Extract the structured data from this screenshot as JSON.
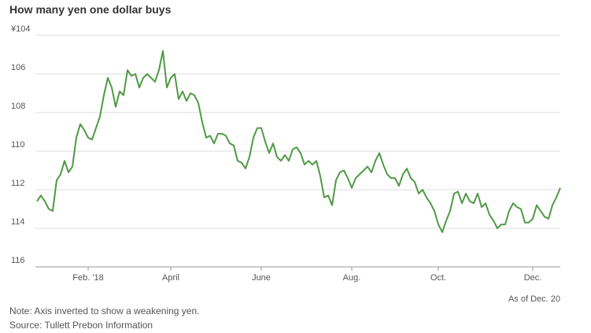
{
  "chart_data": {
    "type": "line",
    "title": "How many yen one dollar buys",
    "note": "Note: Axis inverted to show a weakening yen.",
    "source": "Source: Tullett Prebon Information",
    "annotation": "As of Dec. 20",
    "color": "#4f9a45",
    "inverted": true,
    "grid": true,
    "ylim": [
      104,
      116
    ],
    "yticks": [
      {
        "value": 104,
        "label": "¥104"
      },
      106,
      108,
      110,
      112,
      114,
      116
    ],
    "categories": [
      null,
      null,
      null,
      null,
      null,
      null,
      null,
      null,
      null,
      null,
      null,
      null,
      null,
      "Feb. '18",
      null,
      null,
      null,
      null,
      null,
      null,
      null,
      null,
      null,
      null,
      null,
      null,
      null,
      null,
      null,
      null,
      null,
      null,
      null,
      null,
      "April",
      null,
      null,
      null,
      null,
      null,
      null,
      null,
      null,
      null,
      null,
      null,
      null,
      null,
      null,
      null,
      null,
      null,
      null,
      null,
      null,
      null,
      null,
      "June",
      null,
      null,
      null,
      null,
      null,
      null,
      null,
      null,
      null,
      null,
      null,
      null,
      null,
      null,
      null,
      null,
      null,
      null,
      null,
      null,
      null,
      null,
      "Aug.",
      null,
      null,
      null,
      null,
      null,
      null,
      null,
      null,
      null,
      null,
      null,
      null,
      null,
      null,
      null,
      null,
      null,
      null,
      null,
      null,
      null,
      "Oct.",
      null,
      null,
      null,
      null,
      null,
      null,
      null,
      null,
      null,
      null,
      null,
      null,
      null,
      null,
      null,
      null,
      null,
      null,
      null,
      null,
      null,
      null,
      null,
      "Dec.",
      null,
      null,
      null,
      null,
      null,
      null,
      null
    ],
    "values": [
      112.6,
      112.3,
      112.6,
      113.0,
      113.1,
      111.5,
      111.2,
      110.5,
      111.1,
      110.8,
      109.3,
      108.6,
      108.9,
      109.3,
      109.4,
      108.8,
      108.2,
      107.1,
      106.2,
      106.7,
      107.7,
      106.9,
      107.1,
      105.8,
      106.1,
      106.0,
      106.7,
      106.2,
      106.0,
      106.2,
      106.4,
      105.8,
      104.8,
      106.7,
      106.2,
      106.0,
      107.3,
      106.9,
      107.4,
      107.0,
      107.1,
      107.5,
      108.5,
      109.3,
      109.2,
      109.6,
      109.1,
      109.1,
      109.2,
      109.6,
      109.7,
      110.5,
      110.6,
      110.9,
      110.3,
      109.3,
      108.8,
      108.8,
      109.5,
      110.1,
      109.6,
      110.3,
      110.5,
      110.2,
      110.5,
      109.9,
      109.8,
      110.1,
      110.7,
      110.5,
      110.7,
      110.5,
      111.3,
      112.4,
      112.3,
      112.8,
      111.5,
      111.1,
      111.0,
      111.4,
      111.9,
      111.4,
      111.2,
      111.0,
      110.8,
      111.1,
      110.5,
      110.1,
      110.7,
      111.2,
      111.4,
      111.4,
      111.8,
      111.2,
      110.9,
      111.4,
      111.6,
      112.2,
      112.0,
      112.4,
      112.7,
      113.1,
      113.8,
      114.2,
      113.6,
      113.1,
      112.2,
      112.1,
      112.7,
      112.2,
      112.6,
      112.7,
      112.2,
      112.9,
      112.7,
      113.3,
      113.6,
      114.0,
      113.8,
      113.8,
      113.1,
      112.7,
      112.9,
      113.0,
      113.7,
      113.7,
      113.5,
      112.8,
      113.1,
      113.4,
      113.5,
      112.8,
      112.4,
      111.9
    ]
  }
}
